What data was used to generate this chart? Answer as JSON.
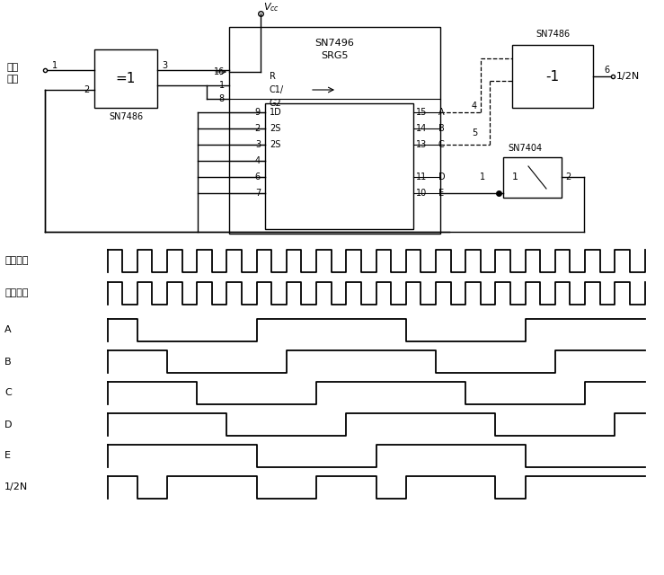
{
  "fig_width": 7.39,
  "fig_height": 6.4,
  "bg_color": "#ffffff",
  "waveform_labels": [
    "输入频率",
    "时钟输入",
    "A",
    "B",
    "C",
    "D",
    "E",
    "1/2N"
  ]
}
